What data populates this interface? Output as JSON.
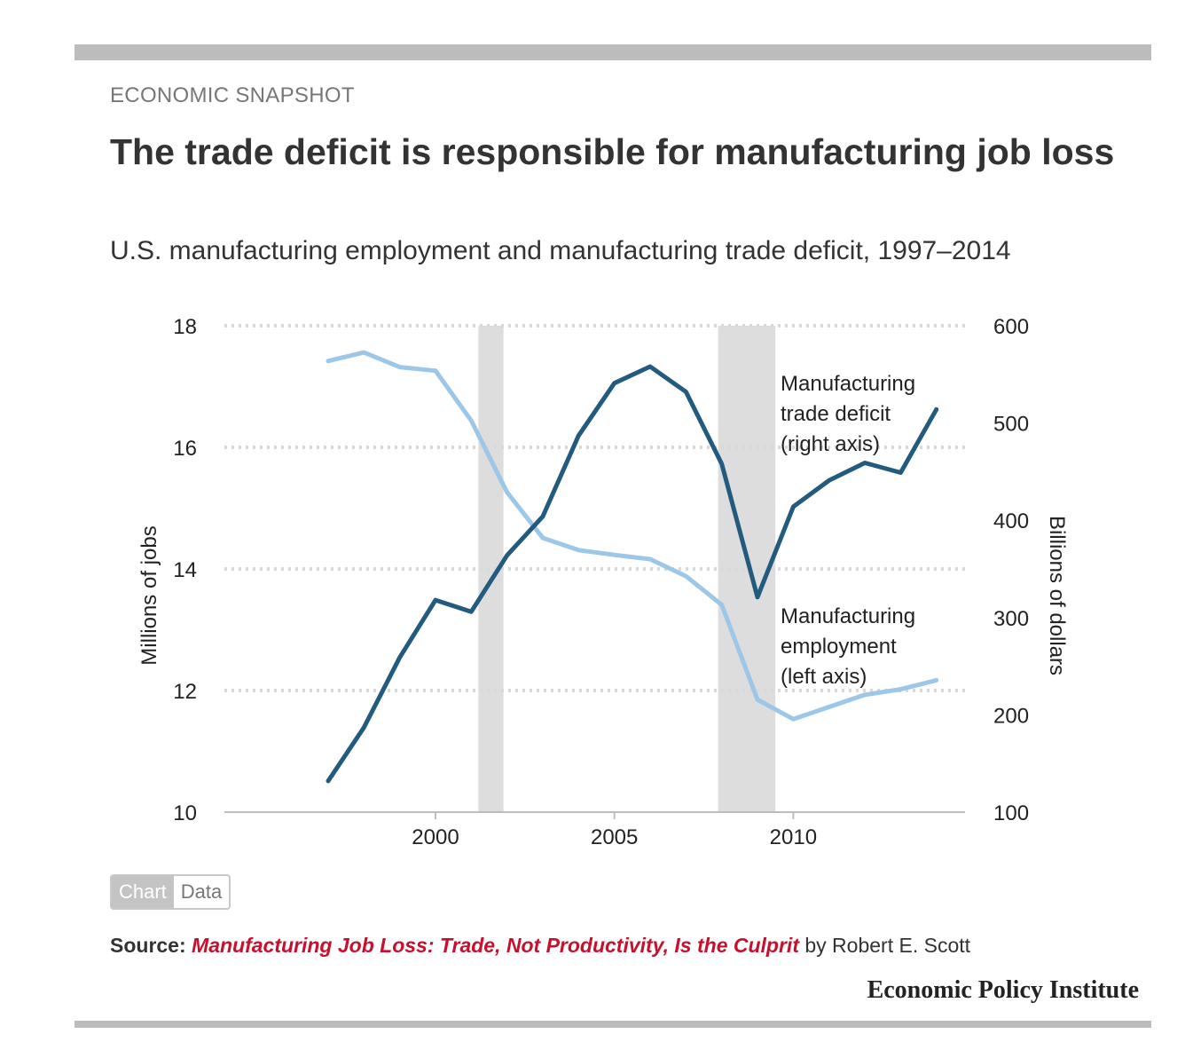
{
  "header": {
    "kicker": "ECONOMIC SNAPSHOT",
    "title": "The trade deficit is responsible for manufacturing job loss",
    "subtitle": "U.S. manufacturing employment and manufacturing trade deficit, 1997–2014"
  },
  "tabs": {
    "chart": "Chart",
    "data": "Data"
  },
  "source": {
    "label": "Source:",
    "link_text": "Manufacturing Job Loss: Trade, Not Productivity, Is the Culprit",
    "byline": " by Robert E. Scott"
  },
  "brand": "Economic Policy Institute",
  "colors": {
    "deficit": "#235b7e",
    "employment": "#9cc7e8",
    "recession": "#dddddd",
    "grid": "#d9d9d9",
    "accent": "#c8102e"
  },
  "chart_data": {
    "type": "line",
    "x": [
      1997,
      1998,
      1999,
      2000,
      2001,
      2002,
      2003,
      2004,
      2005,
      2006,
      2007,
      2008,
      2009,
      2010,
      2011,
      2012,
      2013,
      2014
    ],
    "xticks": [
      2000,
      2005,
      2010
    ],
    "xlim": [
      1994.1,
      2014.8
    ],
    "y_left": {
      "label": "Millions of jobs",
      "ticks": [
        10,
        12,
        14,
        16,
        18
      ],
      "lim": [
        10,
        18
      ]
    },
    "y_right": {
      "label": "Billions of dollars",
      "ticks": [
        100,
        200,
        300,
        400,
        500,
        600
      ],
      "lim": [
        100,
        600
      ]
    },
    "recessions": [
      [
        2001.2,
        2001.9
      ],
      [
        2007.9,
        2009.5
      ]
    ],
    "grid": true,
    "series": [
      {
        "name": "Manufacturing trade deficit (right axis)",
        "label_lines": [
          "Manufacturing",
          "trade deficit",
          "(right axis)"
        ],
        "axis": "right",
        "color": "#235b7e",
        "values": [
          132,
          187,
          259,
          318,
          306,
          364,
          404,
          487,
          541,
          558,
          532,
          458,
          321,
          414,
          441,
          459,
          449,
          514
        ]
      },
      {
        "name": "Manufacturing employment (left axis)",
        "label_lines": [
          "Manufacturing",
          "employment",
          "(left axis)"
        ],
        "axis": "left",
        "color": "#9cc7e8",
        "values": [
          17.42,
          17.56,
          17.32,
          17.26,
          16.44,
          15.26,
          14.51,
          14.31,
          14.23,
          14.16,
          13.88,
          13.41,
          11.85,
          11.53,
          11.73,
          11.93,
          12.02,
          12.17
        ]
      }
    ]
  }
}
